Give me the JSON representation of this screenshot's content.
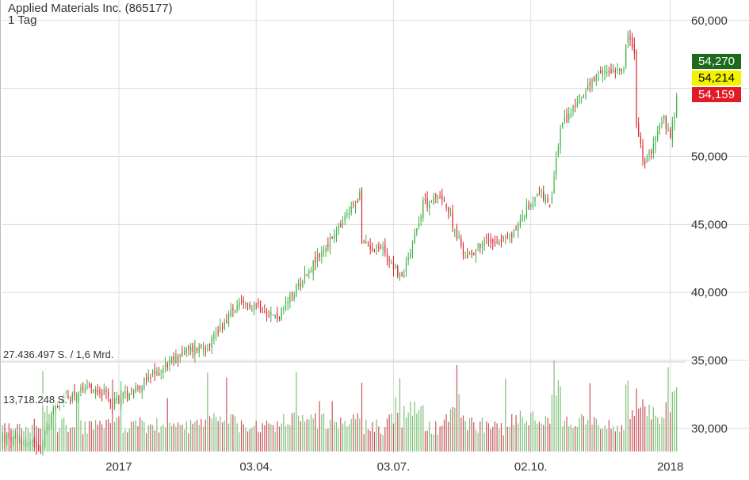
{
  "header": {
    "title": "Applied Materials Inc. (865177)",
    "interval": "1 Tag"
  },
  "volume_labels": {
    "max": "27.436.497 S. / 1,6 Mrd.",
    "mid": "13,718.248 S."
  },
  "price_tags": [
    {
      "value": "54,270",
      "bg": "#1c6b1c",
      "fg": "#ffffff"
    },
    {
      "value": "54,214",
      "bg": "#f5f200",
      "fg": "#000000"
    },
    {
      "value": "54,159",
      "bg": "#e01b24",
      "fg": "#ffffff"
    }
  ],
  "colors": {
    "up": "#3cb043",
    "down": "#d9232d",
    "vol_up": "#7fbf77",
    "vol_down": "#c9555c",
    "grid": "#dddddd"
  },
  "chart_data": {
    "type": "candlestick",
    "y_axis": {
      "min": 26.5,
      "max": 61.5,
      "ticks": [
        30,
        35,
        40,
        45,
        50,
        55,
        60
      ],
      "tick_labels": [
        "30,000",
        "35,000",
        "40,000",
        "45,000",
        "50,000",
        "",
        "60,000"
      ]
    },
    "x_axis": {
      "tick_labels": [
        "2017",
        "03.04.",
        "03.07.",
        "02.10.",
        "2018"
      ],
      "tick_dates": [
        "2017-01-02",
        "2017-04-03",
        "2017-07-03",
        "2017-10-02",
        "2018-01-02"
      ]
    },
    "start_date": "2016-10-17",
    "end_date": "2018-01-05",
    "anchors": [
      [
        "2016-10-17",
        29.3
      ],
      [
        "2016-11-10",
        28.7
      ],
      [
        "2016-11-14",
        29.6
      ],
      [
        "2016-11-21",
        31.8
      ],
      [
        "2016-12-05",
        32.6
      ],
      [
        "2016-12-19",
        33.0
      ],
      [
        "2016-12-28",
        31.9
      ],
      [
        "2017-01-20",
        33.6
      ],
      [
        "2017-02-10",
        35.5
      ],
      [
        "2017-03-01",
        36.2
      ],
      [
        "2017-03-20",
        38.9
      ],
      [
        "2017-04-03",
        39.2
      ],
      [
        "2017-04-17",
        38.1
      ],
      [
        "2017-05-05",
        41.5
      ],
      [
        "2017-05-26",
        44.6
      ],
      [
        "2017-06-09",
        47.2
      ],
      [
        "2017-06-12",
        43.6
      ],
      [
        "2017-06-26",
        43.2
      ],
      [
        "2017-07-07",
        41.0
      ],
      [
        "2017-07-21",
        46.5
      ],
      [
        "2017-08-03",
        47.1
      ],
      [
        "2017-08-18",
        42.6
      ],
      [
        "2017-09-01",
        43.8
      ],
      [
        "2017-09-18",
        44.0
      ],
      [
        "2017-10-06",
        47.6
      ],
      [
        "2017-10-13",
        46.0
      ],
      [
        "2017-10-20",
        52.1
      ],
      [
        "2017-11-03",
        54.5
      ],
      [
        "2017-11-17",
        56.2
      ],
      [
        "2017-12-01",
        56.7
      ],
      [
        "2017-12-05",
        59.0
      ],
      [
        "2017-12-08",
        57.5
      ],
      [
        "2017-12-11",
        52.2
      ],
      [
        "2017-12-15",
        49.2
      ],
      [
        "2017-12-22",
        51.5
      ],
      [
        "2017-12-28",
        52.8
      ],
      [
        "2018-01-02",
        51.3
      ],
      [
        "2018-01-05",
        54.2
      ]
    ],
    "volume_max": 27436497
  }
}
